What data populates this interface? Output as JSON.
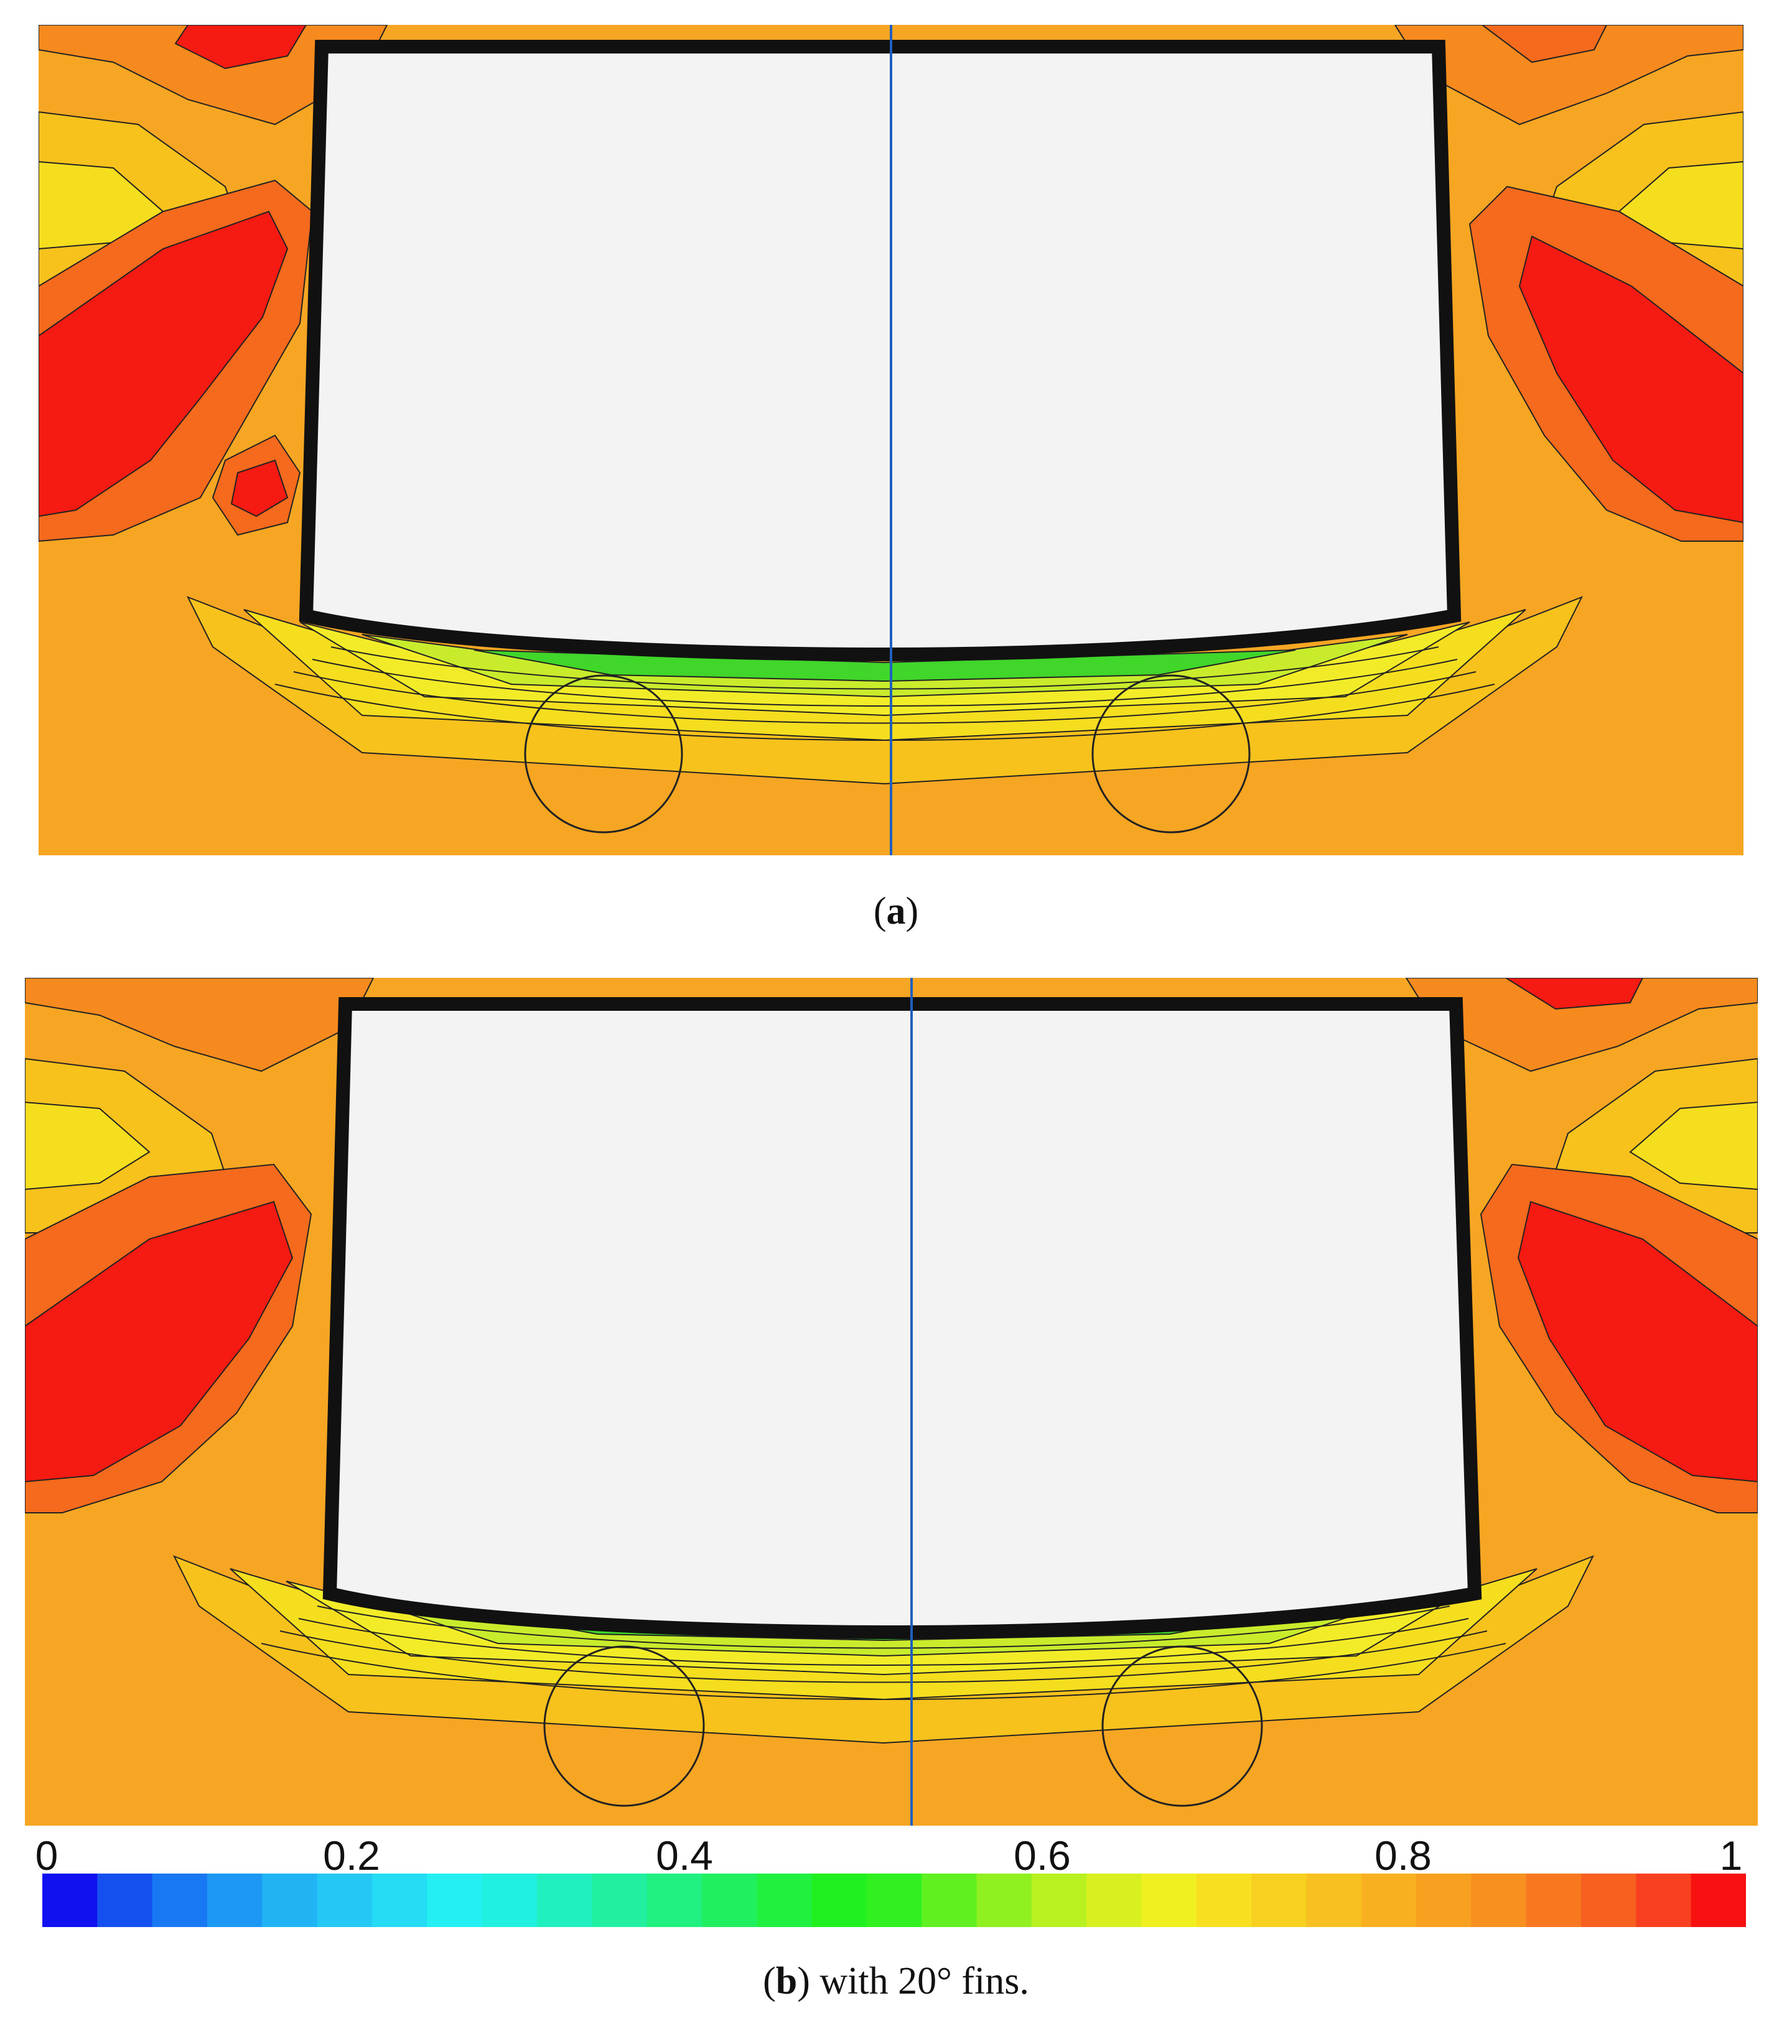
{
  "caption_a": {
    "open": "(",
    "letter": "a",
    "close": ")"
  },
  "caption_b": {
    "open": "(",
    "letter": "b",
    "close": ") with 20° fins."
  },
  "colorbar": {
    "ticks": [
      "0",
      "0.2",
      "0.4",
      "0.6",
      "0.8",
      "1"
    ],
    "tick_values": [
      0,
      0.2,
      0.4,
      0.6,
      0.8,
      1
    ],
    "colors": [
      "#1010f0",
      "#1450f0",
      "#1878f4",
      "#1c98f4",
      "#20b4f4",
      "#24c8f4",
      "#24dcf4",
      "#24f0f4",
      "#20f0e0",
      "#20f0c0",
      "#20f0a0",
      "#20f080",
      "#20f060",
      "#20f040",
      "#20f020",
      "#30f020",
      "#60f020",
      "#90f020",
      "#b8f020",
      "#d8f020",
      "#f0f020",
      "#f8e020",
      "#f8d020",
      "#f8c020",
      "#f8b020",
      "#f8a020",
      "#f89020",
      "#f87820",
      "#f86020",
      "#f84020",
      "#f81010"
    ]
  },
  "palette": {
    "bg": "#f6a623",
    "orange": "#f8961e",
    "deep_orange": "#f56a1c",
    "red": "#f51a12",
    "yellow_orange": "#f8c21c",
    "yellow": "#f5de1e",
    "light_yellow": "#f2ec28",
    "lime": "#c8ec2c",
    "green": "#40d62a",
    "box_fill": "#f3f3f3",
    "centerline": "#1f5fbf"
  }
}
